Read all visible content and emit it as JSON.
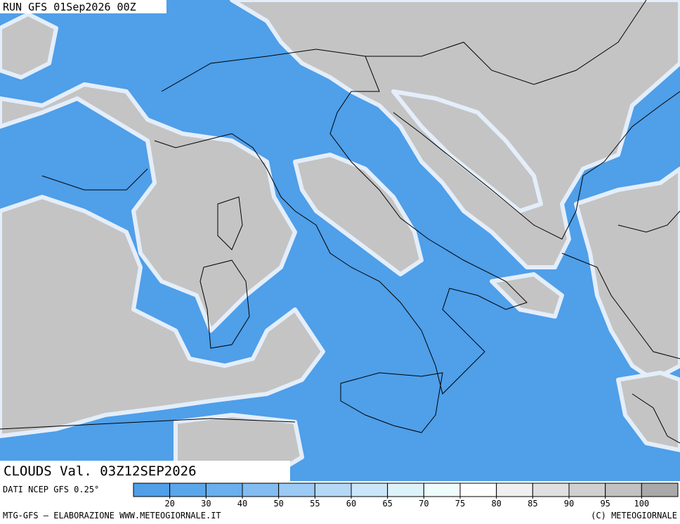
{
  "header": {
    "run": "RUN GFS 01Sep2026 00Z"
  },
  "map": {
    "label": "CLOUDS Val. 03Z12SEP2026",
    "source": "DATI NCEP GFS 0.25°"
  },
  "colorbar": {
    "levels": [
      20,
      30,
      40,
      50,
      55,
      60,
      65,
      70,
      75,
      80,
      85,
      90,
      95,
      100
    ],
    "colors": [
      "#4f9fe9",
      "#5aa6eb",
      "#6aafee",
      "#82bcf1",
      "#9bcaf4",
      "#b4d8f6",
      "#cbe6f8",
      "#def2f9",
      "#eefcfc",
      "#ffffff",
      "#f0f0f0",
      "#e0e0e0",
      "#d0d0d0",
      "#c2c2c2",
      "#a9a9a9"
    ]
  },
  "footer": {
    "left": "MTG-GFS — ELABORAZIONE WWW.METEOGIORNALE.IT",
    "right": "(C) METEOGIORNALE"
  }
}
